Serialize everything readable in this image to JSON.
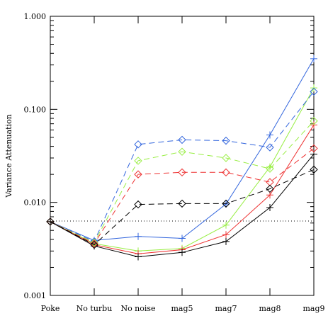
{
  "chart_data": {
    "type": "line",
    "title": "",
    "xlabel": "",
    "ylabel": "Variance Attenuation",
    "categories": [
      "Poke",
      "No turbu",
      "No noise",
      "mag5",
      "mag7",
      "mag8",
      "mag9"
    ],
    "yscale": "log",
    "ylim": [
      0.001,
      1.0
    ],
    "yticks": [
      {
        "value": 0.001,
        "label": "0.001"
      },
      {
        "value": 0.01,
        "label": "0.010"
      },
      {
        "value": 0.1,
        "label": "0.100"
      },
      {
        "value": 1.0,
        "label": "1.000"
      }
    ],
    "grid": false,
    "legend": "none",
    "reference_line": {
      "value": 0.0063,
      "style": "dotted",
      "color": "#000000"
    },
    "series": [
      {
        "color": "#3366dd",
        "dash": "solid",
        "marker": "plus",
        "values": [
          0.0062,
          0.0039,
          0.0043,
          0.0041,
          0.0096,
          0.053,
          0.35
        ]
      },
      {
        "color": "#99ee44",
        "dash": "solid",
        "marker": "plus",
        "values": [
          0.0062,
          0.0036,
          0.003,
          0.0032,
          0.0057,
          0.024,
          0.17
        ]
      },
      {
        "color": "#ee3333",
        "dash": "solid",
        "marker": "plus",
        "values": [
          0.0062,
          0.0035,
          0.0028,
          0.0031,
          0.0045,
          0.012,
          0.068
        ]
      },
      {
        "color": "#000000",
        "dash": "solid",
        "marker": "plus",
        "values": [
          0.0062,
          0.0034,
          0.0026,
          0.0029,
          0.0038,
          0.0088,
          0.033
        ]
      },
      {
        "color": "#3366dd",
        "dash": "dashed",
        "marker": "diamond",
        "values": [
          0.0062,
          0.0038,
          0.042,
          0.047,
          0.046,
          0.039,
          0.155
        ]
      },
      {
        "color": "#99ee44",
        "dash": "dashed",
        "marker": "diamond",
        "values": [
          0.0062,
          0.0037,
          0.028,
          0.035,
          0.03,
          0.023,
          0.075
        ]
      },
      {
        "color": "#ee3333",
        "dash": "dashed",
        "marker": "diamond",
        "values": [
          0.0062,
          0.0036,
          0.02,
          0.021,
          0.021,
          0.0165,
          0.038
        ]
      },
      {
        "color": "#000000",
        "dash": "dashed",
        "marker": "diamond",
        "values": [
          0.0062,
          0.0035,
          0.0095,
          0.0097,
          0.0097,
          0.014,
          0.0225
        ]
      }
    ]
  }
}
